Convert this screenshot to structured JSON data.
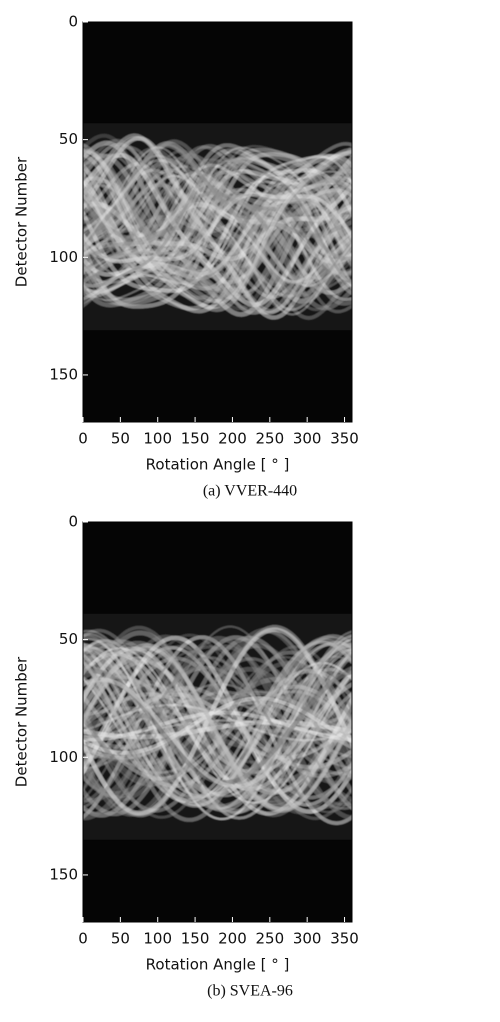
{
  "chart_data": [
    {
      "type": "image",
      "xlabel": "Rotation Angle [ ° ]",
      "ylabel": "Detector Number",
      "caption": "(a) VVER-440",
      "xlim": [
        0,
        360
      ],
      "ylim": [
        170,
        0
      ],
      "xticks": [
        0,
        50,
        100,
        150,
        200,
        250,
        300,
        350
      ],
      "yticks": [
        0,
        50,
        100,
        150
      ]
    },
    {
      "type": "image",
      "xlabel": "Rotation Angle [ ° ]",
      "ylabel": "Detector Number",
      "caption": "(b) SVEA-96",
      "xlim": [
        0,
        360
      ],
      "ylim": [
        170,
        0
      ],
      "xticks": [
        0,
        50,
        100,
        150,
        200,
        250,
        300,
        350
      ],
      "yticks": [
        0,
        50,
        100,
        150
      ]
    }
  ]
}
